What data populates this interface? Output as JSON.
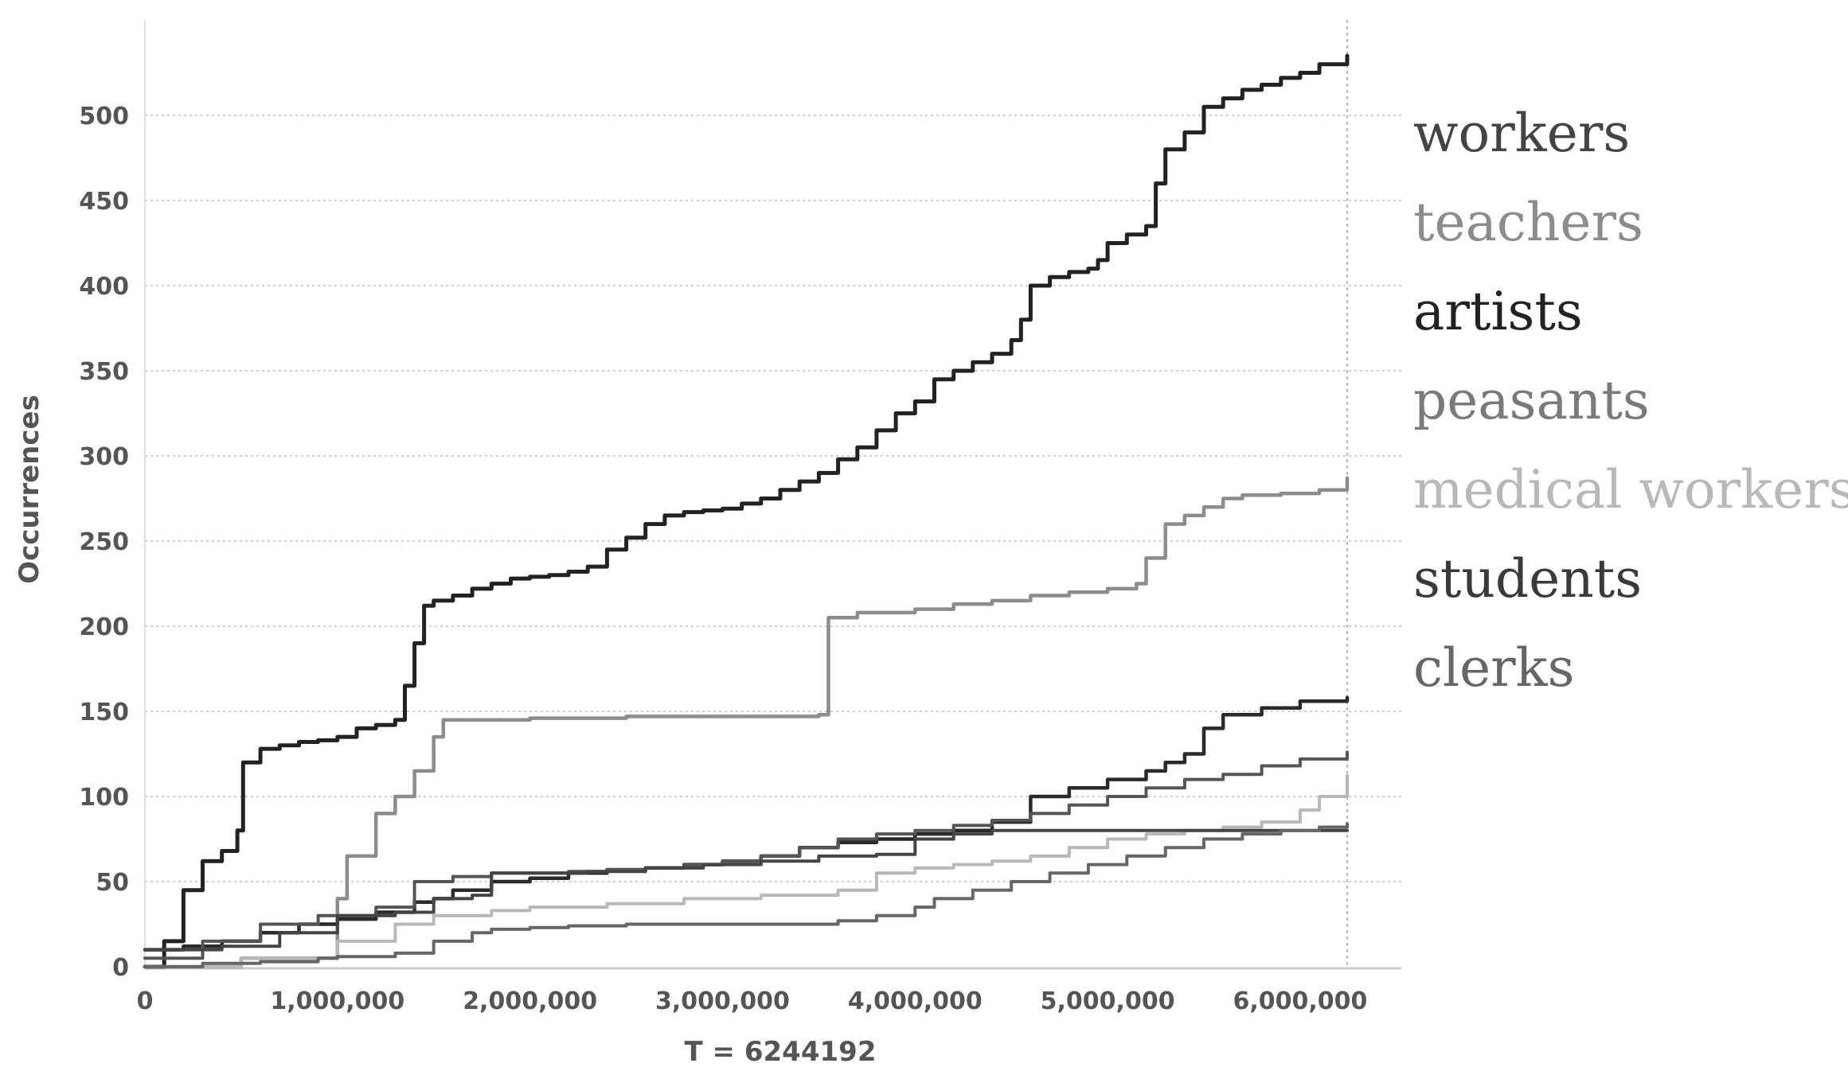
{
  "chart_data": {
    "type": "line",
    "step": true,
    "xlabel": "T = 6244192",
    "ylabel": "Occurrences",
    "xlim": [
      0,
      6244192
    ],
    "ylim": [
      0,
      550
    ],
    "x_ticks": [
      0,
      1000000,
      2000000,
      3000000,
      4000000,
      5000000,
      6000000
    ],
    "x_tick_labels": [
      "0",
      "1,000,000",
      "2,000,000",
      "3,000,000",
      "4,000,000",
      "5,000,000",
      "6,000,000"
    ],
    "y_ticks": [
      0,
      50,
      100,
      150,
      200,
      250,
      300,
      350,
      400,
      450,
      500
    ],
    "y_tick_labels": [
      "0",
      "50",
      "100",
      "150",
      "200",
      "250",
      "300",
      "350",
      "400",
      "450",
      "500"
    ],
    "grid": true,
    "end_marker_x": 6244192,
    "legend_placement": "right",
    "legend": [
      {
        "label": "workers",
        "color": "#444444"
      },
      {
        "label": "teachers",
        "color": "#8c8c8c"
      },
      {
        "label": "artists",
        "color": "#222222"
      },
      {
        "label": "peasants",
        "color": "#7a7a7a"
      },
      {
        "label": "medical workers",
        "color": "#b8b8b8"
      },
      {
        "label": "students",
        "color": "#3a3a3a"
      },
      {
        "label": "clerks",
        "color": "#666666"
      }
    ],
    "series": [
      {
        "color": "#222222",
        "width": 5,
        "points": [
          [
            0,
            0
          ],
          [
            100000,
            15
          ],
          [
            200000,
            45
          ],
          [
            300000,
            62
          ],
          [
            400000,
            68
          ],
          [
            480000,
            80
          ],
          [
            510000,
            120
          ],
          [
            600000,
            128
          ],
          [
            700000,
            130
          ],
          [
            800000,
            132
          ],
          [
            900000,
            133
          ],
          [
            1000000,
            135
          ],
          [
            1100000,
            140
          ],
          [
            1200000,
            142
          ],
          [
            1300000,
            145
          ],
          [
            1350000,
            165
          ],
          [
            1400000,
            190
          ],
          [
            1450000,
            212
          ],
          [
            1500000,
            215
          ],
          [
            1600000,
            218
          ],
          [
            1700000,
            222
          ],
          [
            1800000,
            225
          ],
          [
            1900000,
            228
          ],
          [
            2000000,
            229
          ],
          [
            2100000,
            230
          ],
          [
            2200000,
            232
          ],
          [
            2300000,
            235
          ],
          [
            2400000,
            245
          ],
          [
            2500000,
            252
          ],
          [
            2600000,
            260
          ],
          [
            2700000,
            265
          ],
          [
            2800000,
            267
          ],
          [
            2900000,
            268
          ],
          [
            3000000,
            269
          ],
          [
            3100000,
            272
          ],
          [
            3200000,
            275
          ],
          [
            3300000,
            280
          ],
          [
            3400000,
            285
          ],
          [
            3500000,
            290
          ],
          [
            3600000,
            298
          ],
          [
            3700000,
            305
          ],
          [
            3800000,
            315
          ],
          [
            3900000,
            325
          ],
          [
            4000000,
            332
          ],
          [
            4100000,
            345
          ],
          [
            4200000,
            350
          ],
          [
            4300000,
            355
          ],
          [
            4400000,
            360
          ],
          [
            4500000,
            368
          ],
          [
            4550000,
            380
          ],
          [
            4600000,
            400
          ],
          [
            4700000,
            405
          ],
          [
            4800000,
            408
          ],
          [
            4900000,
            410
          ],
          [
            4950000,
            415
          ],
          [
            5000000,
            425
          ],
          [
            5100000,
            430
          ],
          [
            5200000,
            435
          ],
          [
            5250000,
            460
          ],
          [
            5300000,
            480
          ],
          [
            5400000,
            490
          ],
          [
            5500000,
            505
          ],
          [
            5600000,
            510
          ],
          [
            5700000,
            515
          ],
          [
            5800000,
            518
          ],
          [
            5900000,
            522
          ],
          [
            6000000,
            525
          ],
          [
            6100000,
            530
          ],
          [
            6244192,
            535
          ]
        ]
      },
      {
        "color": "#8c8c8c",
        "width": 4.5,
        "points": [
          [
            0,
            0
          ],
          [
            500000,
            5
          ],
          [
            1000000,
            40
          ],
          [
            1050000,
            65
          ],
          [
            1200000,
            90
          ],
          [
            1300000,
            100
          ],
          [
            1400000,
            115
          ],
          [
            1500000,
            135
          ],
          [
            1550000,
            145
          ],
          [
            2000000,
            146
          ],
          [
            2500000,
            147
          ],
          [
            3000000,
            147
          ],
          [
            3500000,
            148
          ],
          [
            3550000,
            205
          ],
          [
            3700000,
            208
          ],
          [
            4000000,
            210
          ],
          [
            4200000,
            213
          ],
          [
            4400000,
            215
          ],
          [
            4600000,
            218
          ],
          [
            4800000,
            220
          ],
          [
            5000000,
            222
          ],
          [
            5150000,
            225
          ],
          [
            5200000,
            240
          ],
          [
            5300000,
            260
          ],
          [
            5400000,
            265
          ],
          [
            5500000,
            270
          ],
          [
            5600000,
            275
          ],
          [
            5700000,
            277
          ],
          [
            5900000,
            278
          ],
          [
            6100000,
            280
          ],
          [
            6244192,
            287
          ]
        ]
      },
      {
        "color": "#2a2a2a",
        "width": 4.5,
        "points": [
          [
            0,
            10
          ],
          [
            200000,
            12
          ],
          [
            400000,
            15
          ],
          [
            600000,
            20
          ],
          [
            800000,
            25
          ],
          [
            1000000,
            28
          ],
          [
            1200000,
            32
          ],
          [
            1400000,
            38
          ],
          [
            1500000,
            40
          ],
          [
            1600000,
            45
          ],
          [
            1800000,
            50
          ],
          [
            2000000,
            52
          ],
          [
            2200000,
            55
          ],
          [
            2400000,
            57
          ],
          [
            2600000,
            58
          ],
          [
            2800000,
            60
          ],
          [
            3000000,
            62
          ],
          [
            3200000,
            65
          ],
          [
            3400000,
            70
          ],
          [
            3600000,
            73
          ],
          [
            3800000,
            75
          ],
          [
            4000000,
            78
          ],
          [
            4200000,
            80
          ],
          [
            4400000,
            85
          ],
          [
            4600000,
            100
          ],
          [
            4800000,
            105
          ],
          [
            5000000,
            110
          ],
          [
            5200000,
            115
          ],
          [
            5300000,
            120
          ],
          [
            5400000,
            125
          ],
          [
            5500000,
            140
          ],
          [
            5600000,
            148
          ],
          [
            5800000,
            152
          ],
          [
            6000000,
            156
          ],
          [
            6244192,
            158
          ]
        ]
      },
      {
        "color": "#555555",
        "width": 4,
        "points": [
          [
            0,
            5
          ],
          [
            300000,
            15
          ],
          [
            600000,
            25
          ],
          [
            900000,
            30
          ],
          [
            1200000,
            35
          ],
          [
            1400000,
            50
          ],
          [
            1600000,
            53
          ],
          [
            1800000,
            55
          ],
          [
            2000000,
            55
          ],
          [
            2200000,
            56
          ],
          [
            2400000,
            57
          ],
          [
            2600000,
            58
          ],
          [
            2800000,
            60
          ],
          [
            3000000,
            62
          ],
          [
            3200000,
            65
          ],
          [
            3400000,
            70
          ],
          [
            3600000,
            75
          ],
          [
            3800000,
            78
          ],
          [
            4000000,
            80
          ],
          [
            4200000,
            83
          ],
          [
            4400000,
            86
          ],
          [
            4600000,
            90
          ],
          [
            4800000,
            95
          ],
          [
            5000000,
            100
          ],
          [
            5200000,
            105
          ],
          [
            5400000,
            110
          ],
          [
            5600000,
            113
          ],
          [
            5800000,
            118
          ],
          [
            6000000,
            122
          ],
          [
            6244192,
            126
          ]
        ]
      },
      {
        "color": "#b8b8b8",
        "width": 4,
        "points": [
          [
            0,
            0
          ],
          [
            500000,
            5
          ],
          [
            1000000,
            15
          ],
          [
            1300000,
            25
          ],
          [
            1500000,
            30
          ],
          [
            1800000,
            33
          ],
          [
            2000000,
            35
          ],
          [
            2400000,
            37
          ],
          [
            2800000,
            40
          ],
          [
            3200000,
            42
          ],
          [
            3600000,
            45
          ],
          [
            3800000,
            55
          ],
          [
            4000000,
            58
          ],
          [
            4200000,
            60
          ],
          [
            4400000,
            62
          ],
          [
            4600000,
            65
          ],
          [
            4800000,
            70
          ],
          [
            5000000,
            75
          ],
          [
            5200000,
            78
          ],
          [
            5400000,
            80
          ],
          [
            5600000,
            82
          ],
          [
            5800000,
            85
          ],
          [
            6000000,
            92
          ],
          [
            6100000,
            100
          ],
          [
            6244192,
            112
          ]
        ]
      },
      {
        "color": "#444444",
        "width": 4,
        "points": [
          [
            0,
            10
          ],
          [
            400000,
            12
          ],
          [
            700000,
            20
          ],
          [
            1000000,
            30
          ],
          [
            1300000,
            32
          ],
          [
            1500000,
            40
          ],
          [
            1700000,
            42
          ],
          [
            1800000,
            55
          ],
          [
            2000000,
            55
          ],
          [
            2300000,
            56
          ],
          [
            2600000,
            58
          ],
          [
            2900000,
            60
          ],
          [
            3200000,
            62
          ],
          [
            3500000,
            65
          ],
          [
            3800000,
            66
          ],
          [
            4000000,
            75
          ],
          [
            4200000,
            78
          ],
          [
            4400000,
            80
          ],
          [
            4600000,
            80
          ],
          [
            4800000,
            80
          ],
          [
            5000000,
            80
          ],
          [
            5200000,
            80
          ],
          [
            5400000,
            80
          ],
          [
            5600000,
            80
          ],
          [
            5800000,
            80
          ],
          [
            6000000,
            80
          ],
          [
            6244192,
            80
          ]
        ]
      },
      {
        "color": "#666666",
        "width": 4,
        "points": [
          [
            0,
            0
          ],
          [
            300000,
            2
          ],
          [
            600000,
            3
          ],
          [
            900000,
            5
          ],
          [
            1000000,
            6
          ],
          [
            1300000,
            8
          ],
          [
            1500000,
            15
          ],
          [
            1700000,
            20
          ],
          [
            1800000,
            22
          ],
          [
            2000000,
            23
          ],
          [
            2200000,
            24
          ],
          [
            2500000,
            25
          ],
          [
            2800000,
            25
          ],
          [
            3100000,
            25
          ],
          [
            3400000,
            25
          ],
          [
            3600000,
            27
          ],
          [
            3800000,
            30
          ],
          [
            4000000,
            35
          ],
          [
            4100000,
            40
          ],
          [
            4300000,
            45
          ],
          [
            4500000,
            50
          ],
          [
            4700000,
            55
          ],
          [
            4900000,
            60
          ],
          [
            5100000,
            65
          ],
          [
            5300000,
            70
          ],
          [
            5500000,
            75
          ],
          [
            5700000,
            78
          ],
          [
            5900000,
            80
          ],
          [
            6100000,
            82
          ],
          [
            6244192,
            84
          ]
        ]
      }
    ]
  }
}
